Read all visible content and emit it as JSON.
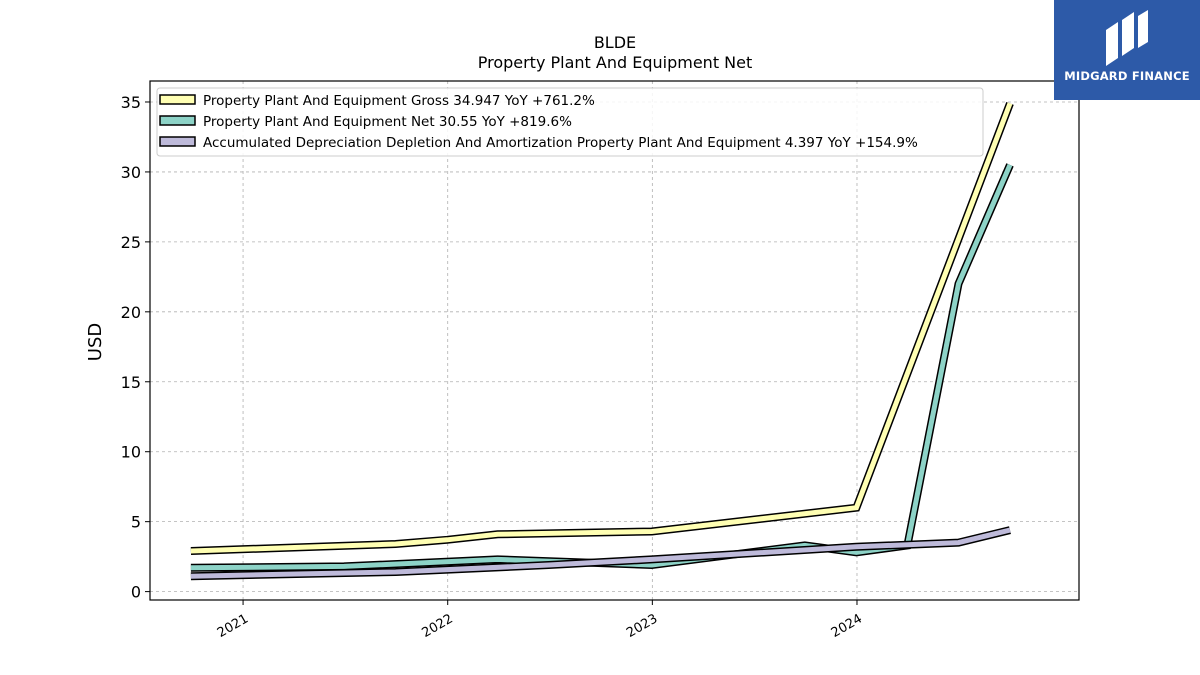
{
  "chart_data": {
    "type": "line",
    "title": "BLDE",
    "subtitle": "Property Plant And Equipment Net",
    "ylabel": "USD",
    "xlabel": "",
    "ylim": [
      -0.6,
      36.5
    ],
    "xlim": [
      "2020-07-19",
      "2025-01-31"
    ],
    "yticks": [
      0,
      5,
      10,
      15,
      20,
      25,
      30,
      35
    ],
    "xticks": [
      "2021-01-01",
      "2022-01-01",
      "2023-01-01",
      "2024-01-01"
    ],
    "xtick_labels": [
      "2021",
      "2022",
      "2023",
      "2024"
    ],
    "grid": true,
    "legend_position": "top-left",
    "series": [
      {
        "name": "Property Plant And Equipment Gross  34.947 YoY +761.2%",
        "color": "#ffffb3",
        "points": [
          [
            "2020-09-30",
            2.9
          ],
          [
            "2021-09-30",
            3.4
          ],
          [
            "2021-12-31",
            3.7
          ],
          [
            "2022-03-31",
            4.1
          ],
          [
            "2022-12-31",
            4.3
          ],
          [
            "2023-12-31",
            6.0
          ],
          [
            "2024-09-30",
            34.9
          ]
        ]
      },
      {
        "name": "Property Plant And Equipment Net  30.55 YoY +819.6%",
        "color": "#8dd3c7",
        "points": [
          [
            "2020-09-30",
            1.7
          ],
          [
            "2021-06-30",
            1.8
          ],
          [
            "2022-03-31",
            2.3
          ],
          [
            "2022-12-31",
            1.9
          ],
          [
            "2023-09-30",
            3.3
          ],
          [
            "2023-12-31",
            2.8
          ],
          [
            "2024-03-31",
            3.3
          ],
          [
            "2024-06-30",
            22.0
          ],
          [
            "2024-09-30",
            30.5
          ]
        ]
      },
      {
        "name": "Accumulated Depreciation Depletion And Amortization Property Plant And Equipment  4.397 YoY +154.9%",
        "color": "#bebada",
        "points": [
          [
            "2020-09-30",
            1.1
          ],
          [
            "2021-09-30",
            1.4
          ],
          [
            "2022-06-30",
            1.9
          ],
          [
            "2022-12-31",
            2.3
          ],
          [
            "2023-12-31",
            3.2
          ],
          [
            "2024-06-30",
            3.5
          ],
          [
            "2024-09-30",
            4.4
          ]
        ]
      }
    ]
  },
  "logo": {
    "text": "MIDGARD FINANCE",
    "color": "#2d5aa8"
  }
}
